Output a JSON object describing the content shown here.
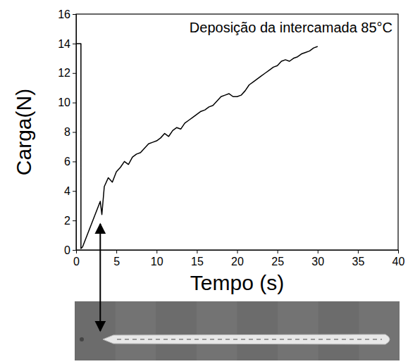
{
  "chart_data": {
    "type": "line",
    "title": "Deposição da intercamada 85°C",
    "x_label": "Tempo (s)",
    "y_label": "Carga(N)",
    "x": [
      0,
      0,
      0.6,
      0.6,
      0.8,
      3,
      3.2,
      3.5,
      4,
      4.5,
      5,
      5.5,
      6,
      6.5,
      7,
      7.5,
      8,
      8.5,
      9,
      9.5,
      10,
      10.5,
      11,
      11.5,
      12,
      12.5,
      13,
      13.5,
      14,
      14.5,
      15,
      15.5,
      16,
      16.5,
      17,
      17.5,
      18,
      18.5,
      19,
      19.5,
      20,
      20.5,
      21,
      21.5,
      22,
      22.5,
      23,
      23.5,
      24,
      24.5,
      25,
      25.5,
      26,
      26.5,
      27,
      27.5,
      28,
      28.5,
      29,
      29.5,
      30
    ],
    "values": [
      0.1,
      14,
      14,
      0.1,
      0.2,
      3.3,
      2.4,
      4.3,
      4.9,
      4.6,
      5.3,
      5.6,
      6.0,
      5.8,
      6.3,
      6.5,
      6.6,
      6.9,
      7.2,
      7.3,
      7.4,
      7.6,
      7.9,
      7.7,
      8.1,
      8.3,
      8.2,
      8.6,
      8.8,
      9.0,
      9.2,
      9.4,
      9.5,
      9.7,
      9.8,
      10.1,
      10.4,
      10.5,
      10.6,
      10.4,
      10.4,
      10.5,
      10.8,
      11.2,
      11.4,
      11.6,
      11.8,
      12.0,
      12.2,
      12.4,
      12.5,
      12.8,
      12.9,
      12.8,
      13.0,
      13.1,
      13.3,
      13.4,
      13.5,
      13.7,
      13.8
    ],
    "color": "#000000",
    "xlim": [
      0,
      40
    ],
    "ylim": [
      0,
      16
    ],
    "xticks": [
      0,
      5,
      10,
      15,
      20,
      25,
      30,
      35,
      40
    ],
    "yticks": [
      0,
      2,
      4,
      6,
      8,
      10,
      12,
      14,
      16
    ]
  }
}
